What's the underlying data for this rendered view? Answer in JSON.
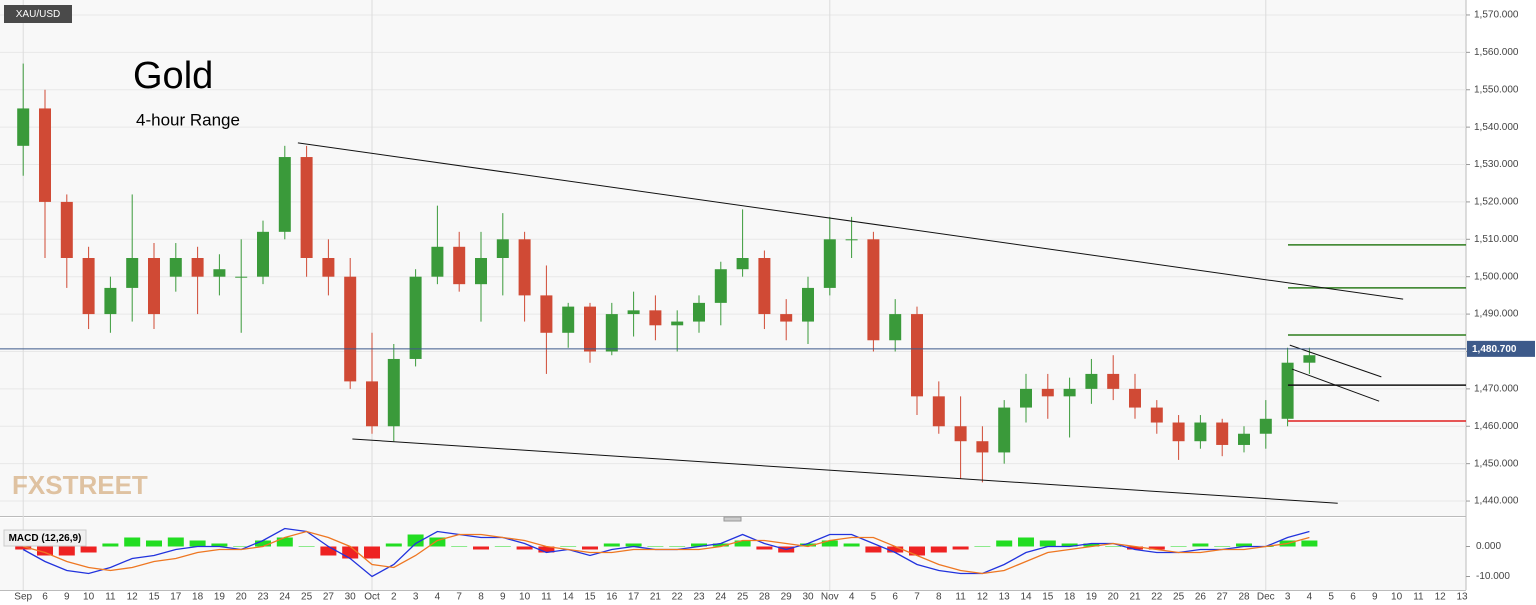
{
  "chart_data": {
    "type": "candlestick",
    "symbol": "XAU/USD",
    "title": "Gold",
    "subtitle": "4-hour Range",
    "watermark": "FXSTREET",
    "categories": [
      "Sep",
      "6",
      "9",
      "10",
      "11",
      "12",
      "15",
      "17",
      "18",
      "19",
      "20",
      "23",
      "24",
      "25",
      "27",
      "30",
      "Oct",
      "2",
      "3",
      "4",
      "7",
      "8",
      "9",
      "10",
      "11",
      "14",
      "15",
      "16",
      "17",
      "21",
      "22",
      "23",
      "24",
      "25",
      "28",
      "29",
      "30",
      "Nov",
      "4",
      "5",
      "6",
      "7",
      "8",
      "11",
      "12",
      "13",
      "14",
      "15",
      "18",
      "19",
      "20",
      "21",
      "22",
      "25",
      "26",
      "27",
      "28",
      "Dec",
      "3",
      "4",
      "5",
      "6",
      "9",
      "10",
      "11",
      "12",
      "13"
    ],
    "open": [
      1535,
      1545,
      1520,
      1505,
      1490,
      1497,
      1505,
      1500,
      1505,
      1500,
      1500,
      1500,
      1512,
      1532,
      1505,
      1500,
      1472,
      1460,
      1478,
      1500,
      1508,
      1498,
      1505,
      1510,
      1495,
      1485,
      1492,
      1480,
      1490,
      1491,
      1487,
      1488,
      1493,
      1502,
      1505,
      1490,
      1488,
      1497,
      1510,
      1510,
      1483,
      1490,
      1468,
      1460,
      1456,
      1453,
      1465,
      1470,
      1468,
      1470,
      1474,
      1470,
      1465,
      1461,
      1456,
      1461,
      1455,
      1458,
      1462,
      1477,
      null,
      null,
      null,
      null,
      null,
      null,
      null
    ],
    "high": [
      1557,
      1550,
      1522,
      1508,
      1500,
      1522,
      1509,
      1509,
      1508,
      1506,
      1510,
      1515,
      1535,
      1535,
      1510,
      1505,
      1485,
      1482,
      1502,
      1519,
      1512,
      1512,
      1517,
      1512,
      1503,
      1493,
      1493,
      1493,
      1496,
      1495,
      1491,
      1495,
      1504,
      1518,
      1507,
      1494,
      1500,
      1516,
      1516,
      1512,
      1494,
      1492,
      1472,
      1468,
      1460,
      1467,
      1474,
      1474,
      1473,
      1478,
      1479,
      1474,
      1467,
      1463,
      1463,
      1462,
      1460,
      1467,
      1481,
      1481,
      null,
      null,
      null,
      null,
      null,
      null,
      null
    ],
    "low": [
      1527,
      1505,
      1497,
      1486,
      1485,
      1488,
      1486,
      1496,
      1490,
      1495,
      1485,
      1498,
      1510,
      1500,
      1495,
      1470,
      1458,
      1456,
      1476,
      1498,
      1496,
      1488,
      1495,
      1488,
      1474,
      1481,
      1477,
      1479,
      1484,
      1483,
      1480,
      1485,
      1487,
      1500,
      1486,
      1483,
      1482,
      1495,
      1505,
      1480,
      1480,
      1463,
      1458,
      1446,
      1445,
      1450,
      1461,
      1462,
      1457,
      1466,
      1467,
      1462,
      1458,
      1451,
      1454,
      1452,
      1453,
      1454,
      1460,
      1474,
      null,
      null,
      null,
      null,
      null,
      null,
      null
    ],
    "close": [
      1545,
      1520,
      1505,
      1490,
      1497,
      1505,
      1490,
      1505,
      1500,
      1502,
      1500,
      1512,
      1532,
      1505,
      1500,
      1472,
      1460,
      1478,
      1500,
      1508,
      1498,
      1505,
      1510,
      1495,
      1485,
      1492,
      1480,
      1490,
      1491,
      1487,
      1488,
      1493,
      1502,
      1505,
      1490,
      1488,
      1497,
      1510,
      1510,
      1483,
      1490,
      1468,
      1460,
      1456,
      1453,
      1465,
      1470,
      1468,
      1470,
      1474,
      1470,
      1465,
      1461,
      1456,
      1461,
      1455,
      1458,
      1462,
      1477,
      1479,
      null,
      null,
      null,
      null,
      null,
      null,
      null
    ],
    "up_color": "#3a9a3a",
    "down_color": "#d04a35",
    "ylim": [
      1436,
      1574
    ],
    "yticks": [
      {
        "value": 1440,
        "label": "1,440.000"
      },
      {
        "value": 1450,
        "label": "1,450.000"
      },
      {
        "value": 1460,
        "label": "1,460.000"
      },
      {
        "value": 1470,
        "label": "1,470.000"
      },
      {
        "value": 1480,
        "label": "1,480.000"
      },
      {
        "value": 1490,
        "label": "1,490.000"
      },
      {
        "value": 1500,
        "label": "1,500.000"
      },
      {
        "value": 1510,
        "label": "1,510.000"
      },
      {
        "value": 1520,
        "label": "1,520.000"
      },
      {
        "value": 1530,
        "label": "1,530.000"
      },
      {
        "value": 1540,
        "label": "1,540.000"
      },
      {
        "value": 1550,
        "label": "1,550.000"
      },
      {
        "value": 1560,
        "label": "1,560.000"
      },
      {
        "value": 1570,
        "label": "1,570.000"
      }
    ],
    "grid": true,
    "last_price": {
      "value": 1480.7,
      "label": "1,480.700"
    },
    "last_price_color": "#3d5a8a",
    "trendlines": [
      {
        "x": [
          12.6,
          63.3
        ],
        "y": [
          1535.8,
          1494.0
        ]
      },
      {
        "x": [
          15.1,
          60.3
        ],
        "y": [
          1456.6,
          1439.4
        ]
      },
      {
        "x": [
          58.1,
          62.3
        ],
        "y": [
          1481.7,
          1473.2
        ]
      },
      {
        "x": [
          58.2,
          62.2
        ],
        "y": [
          1475.3,
          1466.7
        ]
      }
    ],
    "levels": [
      {
        "value": 1508.5,
        "color": "#2e7d1e"
      },
      {
        "value": 1497,
        "color": "#2e7d1e"
      },
      {
        "value": 1484.4,
        "color": "#2e7d1e"
      },
      {
        "value": 1471,
        "color": "#111111"
      },
      {
        "value": 1461.4,
        "color": "#e02020"
      }
    ],
    "macd": {
      "title": "MACD (12,26,9)",
      "line": [
        -1,
        -5,
        -8,
        -9,
        -7,
        -4,
        -3,
        -1,
        0,
        0,
        -1,
        2,
        6,
        5,
        0,
        -4,
        -10,
        -6,
        1,
        5,
        4,
        3,
        3,
        1,
        -2,
        -1,
        -3,
        -1,
        0,
        -1,
        -1,
        0,
        1,
        4,
        1,
        -1,
        1,
        4,
        4,
        1,
        -2,
        -6,
        -8,
        -9,
        -9,
        -6,
        -2,
        0,
        0,
        1,
        1,
        -1,
        -2,
        -2,
        -1,
        -1,
        0,
        0,
        3,
        5,
        null,
        null,
        null,
        null,
        null,
        null,
        null
      ],
      "signal": [
        0,
        -2,
        -5,
        -7,
        -8,
        -7,
        -5,
        -4,
        -2,
        -1,
        -1,
        0,
        3,
        5,
        3,
        0,
        -6,
        -7,
        -3,
        2,
        4,
        4,
        3,
        2,
        0,
        -1,
        -2,
        -2,
        -1,
        -1,
        -1,
        -1,
        0,
        2,
        2,
        1,
        0,
        2,
        3,
        3,
        0,
        -3,
        -6,
        -8,
        -9,
        -8,
        -5,
        -2,
        -1,
        0,
        1,
        0,
        -1,
        -2,
        -2,
        -1,
        -1,
        0,
        1,
        3,
        null,
        null,
        null,
        null,
        null,
        null,
        null
      ],
      "histogram": [
        -1,
        -3,
        -3,
        -2,
        1,
        3,
        2,
        3,
        2,
        1,
        0,
        2,
        3,
        0,
        -3,
        -4,
        -4,
        1,
        4,
        3,
        0,
        -1,
        0,
        -1,
        -2,
        0,
        -1,
        1,
        1,
        0,
        0,
        1,
        1,
        2,
        -1,
        -2,
        1,
        2,
        1,
        -2,
        -2,
        -3,
        -2,
        -1,
        0,
        2,
        3,
        2,
        1,
        1,
        0,
        -1,
        -1,
        0,
        1,
        0,
        1,
        0,
        2,
        2,
        null,
        null,
        null,
        null,
        null,
        null,
        null
      ],
      "line_color": "#2233dd",
      "signal_color": "#ee7722",
      "positive_color": "#22dd22",
      "negative_color": "#ee2222",
      "ylim": [
        -14.5,
        9.5
      ],
      "yticks": [
        {
          "value": 0,
          "label": "0.000"
        },
        {
          "value": -10,
          "label": "-10.000"
        }
      ]
    }
  }
}
